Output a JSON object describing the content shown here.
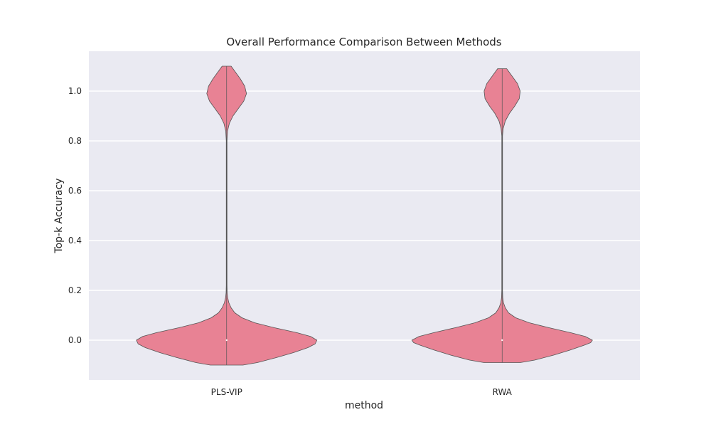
{
  "chart_data": {
    "type": "violin",
    "title": "Overall Performance Comparison Between Methods",
    "xlabel": "method",
    "ylabel": "Top-k Accuracy",
    "categories": [
      "PLS-VIP",
      "RWA"
    ],
    "ylim": [
      -0.16,
      1.16
    ],
    "yticks": [
      0.0,
      0.2,
      0.4,
      0.6,
      0.8,
      1.0
    ],
    "ytick_labels": [
      "0.0",
      "0.2",
      "0.4",
      "0.6",
      "0.8",
      "1.0"
    ],
    "grid": true,
    "background_color": "#eaeaf2",
    "violin_color": "#e88294",
    "edge_color": "#555555",
    "series": [
      {
        "category": "PLS-VIP",
        "min": -0.1,
        "max": 1.1,
        "median": 0.0,
        "density_profile": [
          {
            "y": -0.1,
            "w": 0.18
          },
          {
            "y": -0.09,
            "w": 0.34
          },
          {
            "y": -0.07,
            "w": 0.55
          },
          {
            "y": -0.05,
            "w": 0.74
          },
          {
            "y": -0.03,
            "w": 0.9
          },
          {
            "y": -0.015,
            "w": 0.98
          },
          {
            "y": 0.0,
            "w": 1.0
          },
          {
            "y": 0.015,
            "w": 0.93
          },
          {
            "y": 0.03,
            "w": 0.78
          },
          {
            "y": 0.05,
            "w": 0.53
          },
          {
            "y": 0.07,
            "w": 0.31
          },
          {
            "y": 0.09,
            "w": 0.17
          },
          {
            "y": 0.11,
            "w": 0.09
          },
          {
            "y": 0.13,
            "w": 0.05
          },
          {
            "y": 0.15,
            "w": 0.025
          },
          {
            "y": 0.17,
            "w": 0.012
          },
          {
            "y": 0.19,
            "w": 0.006
          },
          {
            "y": 0.22,
            "w": 0.004
          },
          {
            "y": 0.5,
            "w": 0.004
          },
          {
            "y": 0.8,
            "w": 0.004
          },
          {
            "y": 0.84,
            "w": 0.01
          },
          {
            "y": 0.87,
            "w": 0.03
          },
          {
            "y": 0.9,
            "w": 0.07
          },
          {
            "y": 0.93,
            "w": 0.13
          },
          {
            "y": 0.96,
            "w": 0.19
          },
          {
            "y": 0.99,
            "w": 0.22
          },
          {
            "y": 1.02,
            "w": 0.2
          },
          {
            "y": 1.05,
            "w": 0.15
          },
          {
            "y": 1.08,
            "w": 0.09
          },
          {
            "y": 1.1,
            "w": 0.05
          }
        ]
      },
      {
        "category": "RWA",
        "min": -0.09,
        "max": 1.09,
        "median": 0.0,
        "density_profile": [
          {
            "y": -0.09,
            "w": 0.2
          },
          {
            "y": -0.08,
            "w": 0.36
          },
          {
            "y": -0.06,
            "w": 0.57
          },
          {
            "y": -0.04,
            "w": 0.75
          },
          {
            "y": -0.02,
            "w": 0.91
          },
          {
            "y": -0.01,
            "w": 0.98
          },
          {
            "y": 0.0,
            "w": 1.0
          },
          {
            "y": 0.015,
            "w": 0.92
          },
          {
            "y": 0.03,
            "w": 0.76
          },
          {
            "y": 0.05,
            "w": 0.52
          },
          {
            "y": 0.07,
            "w": 0.3
          },
          {
            "y": 0.09,
            "w": 0.15
          },
          {
            "y": 0.11,
            "w": 0.07
          },
          {
            "y": 0.13,
            "w": 0.035
          },
          {
            "y": 0.15,
            "w": 0.015
          },
          {
            "y": 0.17,
            "w": 0.007
          },
          {
            "y": 0.2,
            "w": 0.004
          },
          {
            "y": 0.5,
            "w": 0.004
          },
          {
            "y": 0.82,
            "w": 0.004
          },
          {
            "y": 0.85,
            "w": 0.012
          },
          {
            "y": 0.88,
            "w": 0.035
          },
          {
            "y": 0.91,
            "w": 0.08
          },
          {
            "y": 0.94,
            "w": 0.14
          },
          {
            "y": 0.97,
            "w": 0.19
          },
          {
            "y": 1.0,
            "w": 0.2
          },
          {
            "y": 1.03,
            "w": 0.17
          },
          {
            "y": 1.06,
            "w": 0.11
          },
          {
            "y": 1.09,
            "w": 0.05
          }
        ]
      }
    ]
  }
}
